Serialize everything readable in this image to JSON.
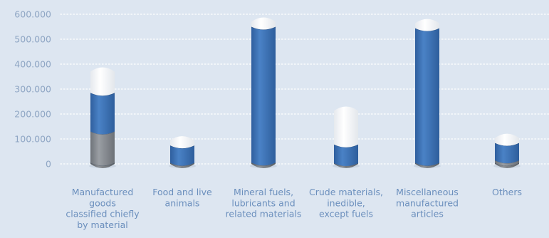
{
  "chart_data": {
    "type": "bar",
    "title": "",
    "xlabel": "",
    "ylabel": "",
    "ylim": [
      0,
      600000
    ],
    "yticks": [
      0,
      100000,
      200000,
      300000,
      400000,
      500000,
      600000
    ],
    "ytick_labels": [
      "0",
      "100.000",
      "200.000",
      "300.000",
      "400.000",
      "500.000",
      "600.000"
    ],
    "grid": true,
    "categories": [
      {
        "label_lines": [
          "Manufactured",
          "goods",
          "classified chiefly",
          "by material"
        ]
      },
      {
        "label_lines": [
          "Food and live",
          "animals"
        ]
      },
      {
        "label_lines": [
          "Mineral fuels,",
          "lubricants and",
          "related materials"
        ]
      },
      {
        "label_lines": [
          "Crude materials,",
          "inedible,",
          "except fuels"
        ]
      },
      {
        "label_lines": [
          "Miscellaneous",
          "manufactured",
          "articles"
        ]
      },
      {
        "label_lines": [
          "Others"
        ]
      }
    ],
    "series": [
      {
        "values": [
          5000,
          4000,
          5000,
          3000,
          4000,
          4000
        ],
        "color": "#7d8288"
      },
      {
        "values": [
          125000,
          0,
          0,
          0,
          0,
          10000
        ],
        "color": "#8a8d92"
      },
      {
        "values": [
          155000,
          70000,
          545000,
          75000,
          540000,
          70000
        ],
        "color": "#3b70b5"
      },
      {
        "values": [
          85000,
          20000,
          20000,
          135000,
          20000,
          20000
        ],
        "color": "#f2f4f7"
      }
    ]
  }
}
